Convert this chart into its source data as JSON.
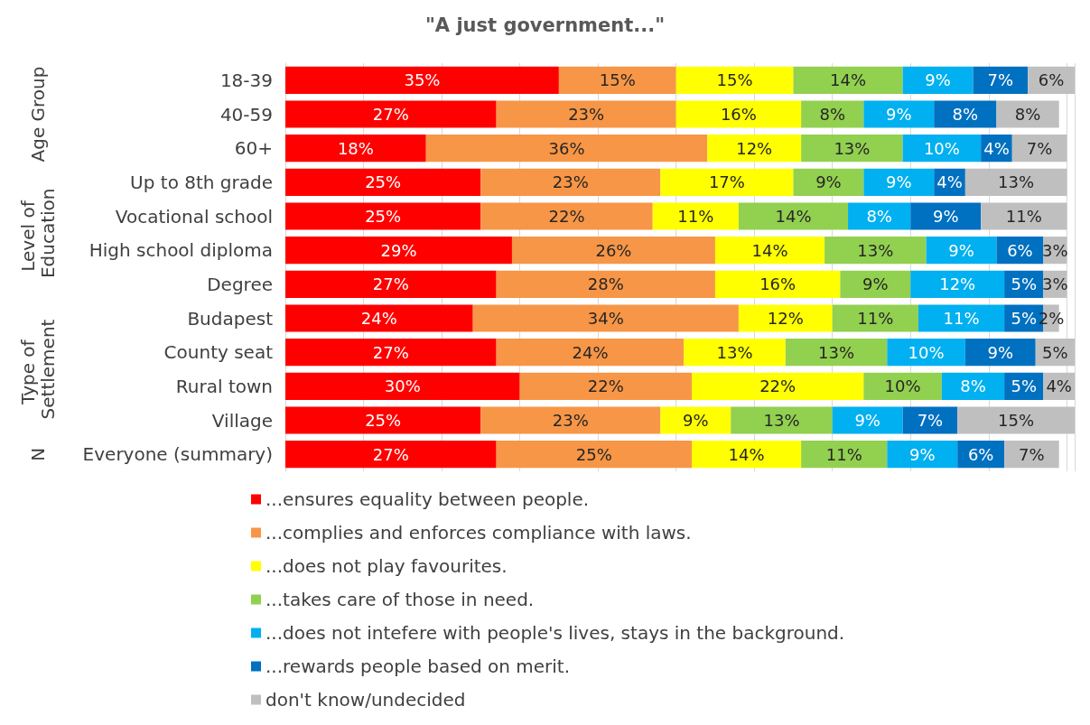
{
  "chart_data": {
    "type": "bar",
    "orientation": "horizontal",
    "stacked": true,
    "title": "\"A just government...\"",
    "categories": [
      "18-39",
      "40-59",
      "60+",
      "Up to 8th grade",
      "Vocational school",
      "High school diploma",
      "Degree",
      "Budapest",
      "County seat",
      "Rural town",
      "Village",
      "Everyone (summary)"
    ],
    "series": [
      {
        "name": "...ensures equality between people.",
        "color": "#ff0000",
        "values": [
          35,
          27,
          18,
          25,
          25,
          29,
          27,
          24,
          27,
          30,
          25,
          27
        ],
        "value_labels": [
          "35%",
          "27%",
          "18%",
          "25%",
          "25%",
          "29%",
          "27%",
          "24%",
          "27%",
          "30%",
          "25%",
          "27%"
        ]
      },
      {
        "name": "...complies and enforces compliance with laws.",
        "color": "#f79646",
        "values": [
          15,
          23,
          36,
          23,
          22,
          26,
          28,
          34,
          24,
          22,
          23,
          25
        ],
        "value_labels": [
          "15%",
          "23%",
          "36%",
          "23%",
          "22%",
          "26%",
          "28%",
          "34%",
          "24%",
          "22%",
          "23%",
          "25%"
        ]
      },
      {
        "name": "...does not play favourites.",
        "color": "#ffff00",
        "values": [
          15,
          16,
          12,
          17,
          11,
          14,
          16,
          12,
          13,
          22,
          9,
          14
        ],
        "value_labels": [
          "15%",
          "16%",
          "12%",
          "17%",
          "11%",
          "14%",
          "16%",
          "12%",
          "13%",
          "22%",
          "9%",
          "14%"
        ]
      },
      {
        "name": "...takes care of those in need.",
        "color": "#92d050",
        "values": [
          14,
          8,
          13,
          9,
          14,
          13,
          9,
          11,
          13,
          10,
          13,
          11
        ],
        "value_labels": [
          "14%",
          "8%",
          "13%",
          "9%",
          "14%",
          "13%",
          "9%",
          "11%",
          "13%",
          "10%",
          "13%",
          "11%"
        ]
      },
      {
        "name": "...does not intefere with people's lives, stays in the background.",
        "color": "#00b0f0",
        "values": [
          9,
          9,
          10,
          9,
          8,
          9,
          12,
          11,
          10,
          8,
          9,
          9
        ],
        "value_labels": [
          "9%",
          "9%",
          "10%",
          "9%",
          "8%",
          "9%",
          "12%",
          "11%",
          "10%",
          "8%",
          "9%",
          "9%"
        ]
      },
      {
        "name": "...rewards people based on merit.",
        "color": "#0070c0",
        "values": [
          7,
          8,
          4,
          4,
          9,
          6,
          5,
          5,
          9,
          5,
          7,
          6
        ],
        "value_labels": [
          "7%",
          "8%",
          "4%",
          "4%",
          "9%",
          "6%",
          "5%",
          "5%",
          "9%",
          "5%",
          "7%",
          "6%"
        ]
      },
      {
        "name": "don't know/undecided",
        "color": "#bfbfbf",
        "values": [
          6,
          8,
          7,
          13,
          11,
          3,
          3,
          2,
          5,
          4,
          15,
          7
        ],
        "value_labels": [
          "6%",
          "8%",
          "7%",
          "13%",
          "11%",
          "3%",
          "3%",
          "2%",
          "5%",
          "4%",
          "15%",
          "7%"
        ]
      }
    ],
    "grid": "x",
    "tick_labels": "y",
    "legend": "bottom",
    "annotations": [
      "Age Group",
      "Level of Education",
      "Type of Settlement",
      "N"
    ]
  }
}
